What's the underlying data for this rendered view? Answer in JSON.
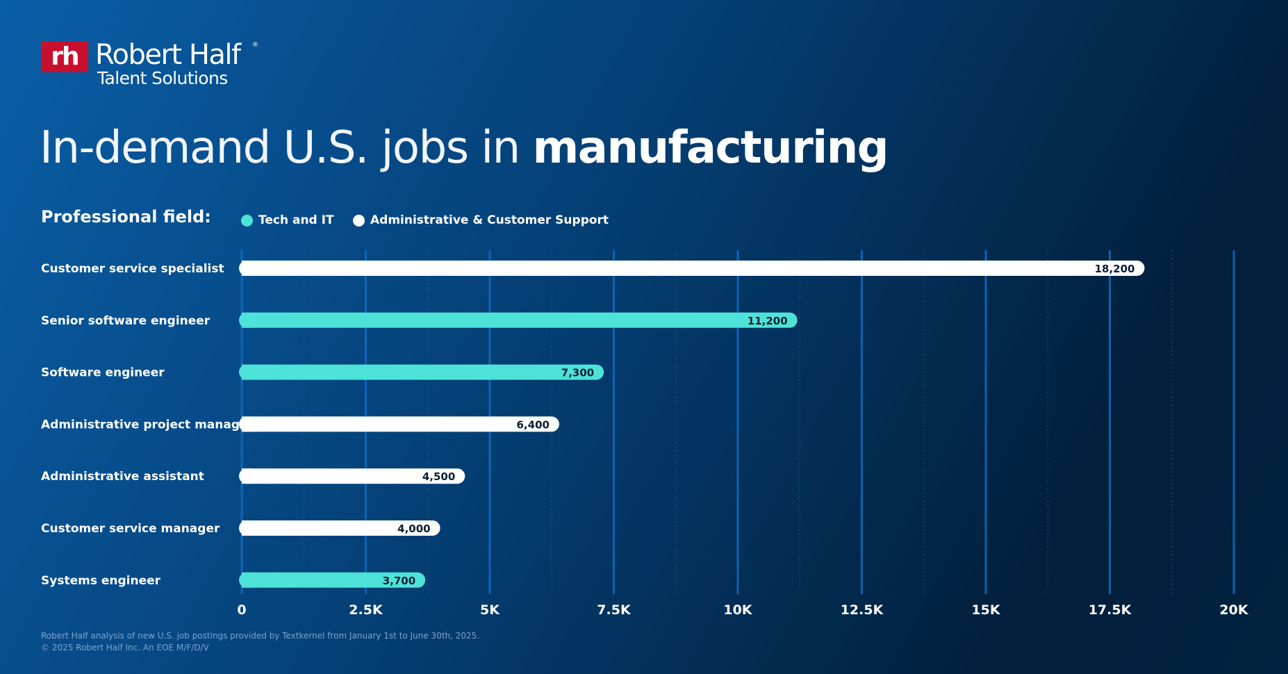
{
  "brand": {
    "mark": "rh",
    "name": "Robert Half",
    "registered": "®",
    "subtitle": "Talent Solutions"
  },
  "headline": {
    "light": "In-demand U.S. jobs in ",
    "bold": "manufacturing"
  },
  "legend": {
    "label": "Professional field:",
    "items": [
      {
        "name": "Tech and IT",
        "color": "#4de3d8"
      },
      {
        "name": "Administrative & Customer Support",
        "color": "#ffffff"
      }
    ]
  },
  "chart_data": {
    "type": "bar",
    "orientation": "horizontal",
    "categories": [
      "Customer service specialist",
      "Senior software engineer",
      "Software engineer",
      "Administrative project manager",
      "Administrative assistant",
      "Customer service manager",
      "Systems engineer"
    ],
    "values": [
      18200,
      11200,
      7300,
      6400,
      4500,
      4000,
      3700
    ],
    "value_labels": [
      "18,200",
      "11,200",
      "7,300",
      "6,400",
      "4,500",
      "4,000",
      "3,700"
    ],
    "fields": [
      "Administrative & Customer Support",
      "Tech and IT",
      "Tech and IT",
      "Administrative & Customer Support",
      "Administrative & Customer Support",
      "Administrative & Customer Support",
      "Tech and IT"
    ],
    "xlim": [
      0,
      20000
    ],
    "xticks": [
      0,
      2500,
      5000,
      7500,
      10000,
      12500,
      15000,
      17500,
      20000
    ],
    "xtick_labels": [
      "0",
      "2.5K",
      "5K",
      "7.5K",
      "10K",
      "12.5K",
      "15K",
      "17.5K",
      "20K"
    ],
    "minor_gridlines": true,
    "legend_position": "top"
  },
  "footer": {
    "line1": "Robert Half analysis of new U.S. job postings provided by Textkernel from January 1st to June 30th, 2025.",
    "line2": "© 2025 Robert Half Inc. An EOE M/F/D/V"
  }
}
